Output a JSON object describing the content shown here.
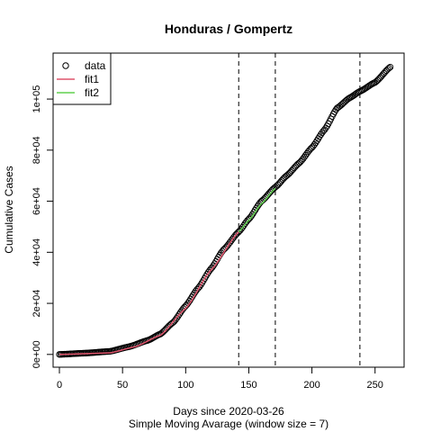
{
  "chart_data": {
    "type": "scatter",
    "title": "Honduras / Gompertz",
    "xlabel": "Days since 2020-03-26",
    "sublabel": "Simple Moving Avarage (window size = 7)",
    "ylabel": "Cumulative Cases",
    "xlim": [
      -5,
      273
    ],
    "ylim": [
      -5000,
      118000
    ],
    "x_ticks": [
      0,
      50,
      100,
      150,
      200,
      250
    ],
    "x_tick_labels": [
      "0",
      "50",
      "100",
      "150",
      "200",
      "250"
    ],
    "y_ticks": [
      0,
      20000,
      40000,
      60000,
      80000,
      100000
    ],
    "y_tick_labels": [
      "0e+00",
      "2e+04",
      "4e+04",
      "6e+04",
      "8e+04",
      "1e+05"
    ],
    "vlines": [
      142,
      171,
      238
    ],
    "legend": {
      "placement": "top-left",
      "entries": [
        {
          "label": "data",
          "symbol": "circle",
          "color": "#000000"
        },
        {
          "label": "fit1",
          "symbol": "line",
          "color": "#df536b"
        },
        {
          "label": "fit2",
          "symbol": "line",
          "color": "#61d04f"
        }
      ]
    },
    "data_anchors": [
      [
        0,
        0
      ],
      [
        20,
        500
      ],
      [
        40,
        1200
      ],
      [
        55,
        3000
      ],
      [
        70,
        5500
      ],
      [
        80,
        8000
      ],
      [
        90,
        12500
      ],
      [
        100,
        19000
      ],
      [
        110,
        26000
      ],
      [
        120,
        33500
      ],
      [
        130,
        41000
      ],
      [
        142,
        48000
      ],
      [
        150,
        53000
      ],
      [
        160,
        60000
      ],
      [
        171,
        65500
      ],
      [
        180,
        70000
      ],
      [
        190,
        75000
      ],
      [
        200,
        81000
      ],
      [
        210,
        88000
      ],
      [
        220,
        96500
      ],
      [
        230,
        100500
      ],
      [
        238,
        103000
      ],
      [
        250,
        106500
      ],
      [
        262,
        112500
      ]
    ],
    "data_range": [
      0,
      262
    ],
    "fit1": {
      "x_range": [
        0,
        142
      ],
      "anchors": [
        [
          0,
          0
        ],
        [
          40,
          600
        ],
        [
          60,
          3000
        ],
        [
          80,
          7500
        ],
        [
          100,
          18000
        ],
        [
          120,
          33000
        ],
        [
          142,
          48000
        ]
      ]
    },
    "fit2": {
      "x_range": [
        142,
        171
      ],
      "anchors": [
        [
          142,
          48000
        ],
        [
          150,
          52500
        ],
        [
          160,
          59000
        ],
        [
          171,
          65000
        ]
      ]
    }
  }
}
